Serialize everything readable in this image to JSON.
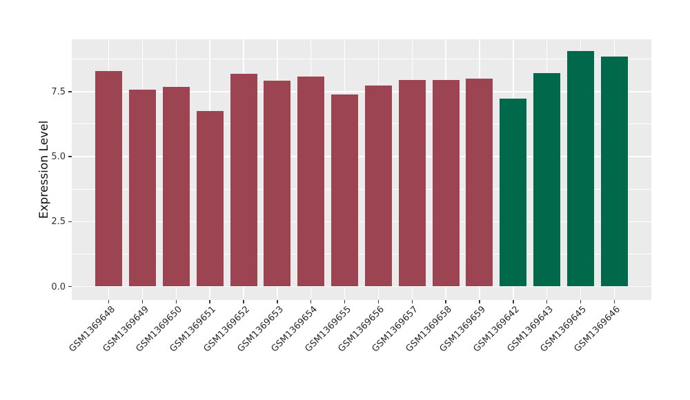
{
  "chart_data": {
    "type": "bar",
    "title": "",
    "xlabel": "",
    "ylabel": "Expression Level",
    "categories": [
      "GSM1369648",
      "GSM1369649",
      "GSM1369650",
      "GSM1369651",
      "GSM1369652",
      "GSM1369653",
      "GSM1369654",
      "GSM1369655",
      "GSM1369656",
      "GSM1369657",
      "GSM1369658",
      "GSM1369659",
      "GSM1369642",
      "GSM1369643",
      "GSM1369645",
      "GSM1369646"
    ],
    "values": [
      8.3,
      7.57,
      7.69,
      6.75,
      8.18,
      7.93,
      8.09,
      7.39,
      7.73,
      7.94,
      7.94,
      7.99,
      7.24,
      8.22,
      9.06,
      8.85
    ],
    "bar_groups": [
      0,
      0,
      0,
      0,
      0,
      0,
      0,
      0,
      0,
      0,
      0,
      0,
      1,
      1,
      1,
      1
    ],
    "group_colors": [
      "#9C4451",
      "#01694B"
    ],
    "ytick_labels": [
      "0.0",
      "2.5",
      "5.0",
      "7.5"
    ],
    "ytick_values": [
      0,
      2.5,
      5.0,
      7.5
    ],
    "yminor_values": [
      1.25,
      3.75,
      6.25,
      8.75
    ],
    "ylim": [
      -0.47,
      9.51
    ],
    "grid": true,
    "legend": false,
    "panel_bg": "#EBEBEB",
    "gridline_color": "#FFFFFF",
    "x_label_rotation_deg": 45
  }
}
